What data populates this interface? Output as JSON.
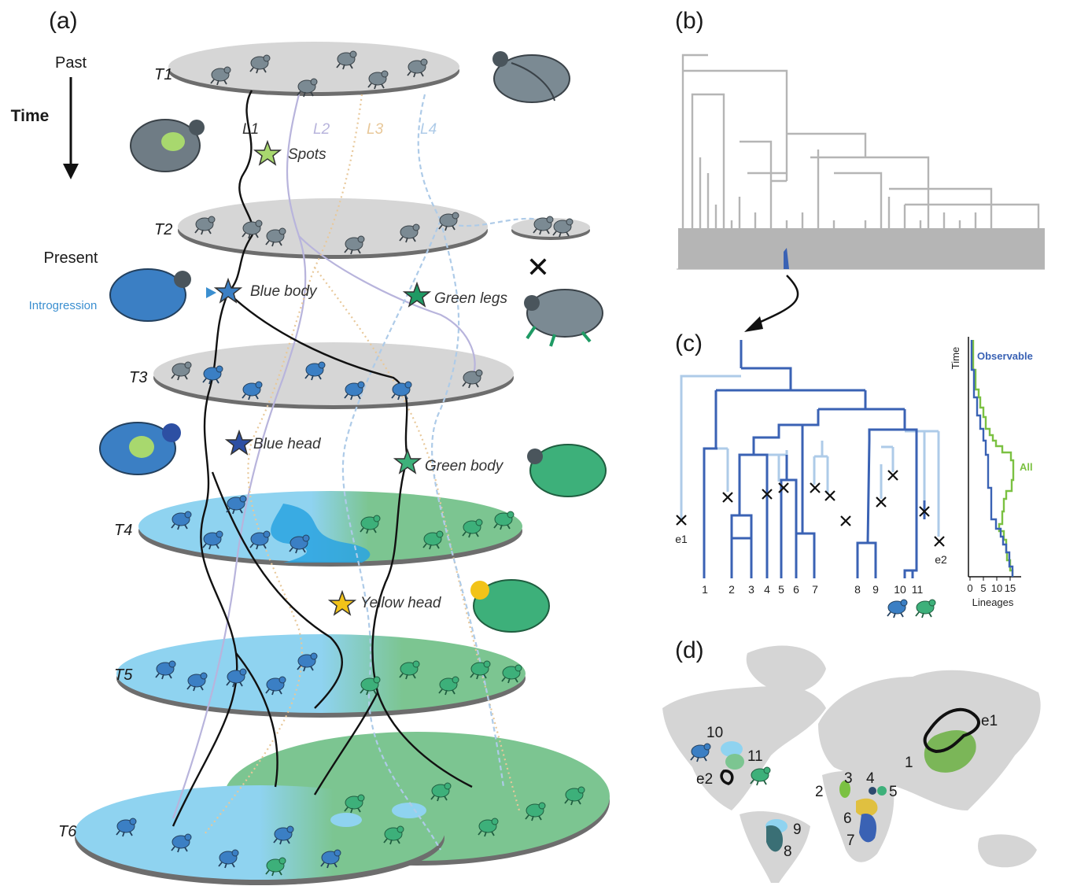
{
  "panels": {
    "a": "(a)",
    "b": "(b)",
    "c": "(c)",
    "d": "(d)"
  },
  "panel_a": {
    "past": "Past",
    "time": "Time",
    "present": "Present",
    "introgression": "Introgression",
    "time_slices": [
      "T1",
      "T2",
      "T3",
      "T4",
      "T5",
      "T6"
    ],
    "lineages": [
      "L1",
      "L2",
      "L3",
      "L4"
    ],
    "traits": [
      "Spots",
      "Blue body",
      "Green legs",
      "Blue head",
      "Green body",
      "Yellow head"
    ],
    "extinction_mark": "✕",
    "colors": {
      "gray_beetle": "#7b8a93",
      "blue_beetle": "#3b7fc4",
      "green_beetle": "#3db07a",
      "spot": "#a8d86e",
      "yellow": "#f2c318",
      "water": "#8fd3f0",
      "land": "#7cc591"
    }
  },
  "panel_c": {
    "tips": [
      "1",
      "2",
      "3",
      "4",
      "5",
      "6",
      "7",
      "8",
      "9",
      "10",
      "11"
    ],
    "extinct_labels": [
      "e1",
      "e2"
    ],
    "ltt": {
      "ylabel": "Time",
      "xlabel": "Lineages",
      "xticks": [
        "0",
        "5",
        "10",
        "15"
      ],
      "observable_label": "Observable",
      "all_label": "All"
    },
    "colors": {
      "observable": "#3a62b4",
      "extinct": "#aecbe8",
      "all": "#7bc142"
    }
  },
  "panel_d": {
    "region_labels": [
      "1",
      "2",
      "3",
      "4",
      "5",
      "6",
      "7",
      "8",
      "9",
      "10",
      "11",
      "e1",
      "e2"
    ]
  }
}
